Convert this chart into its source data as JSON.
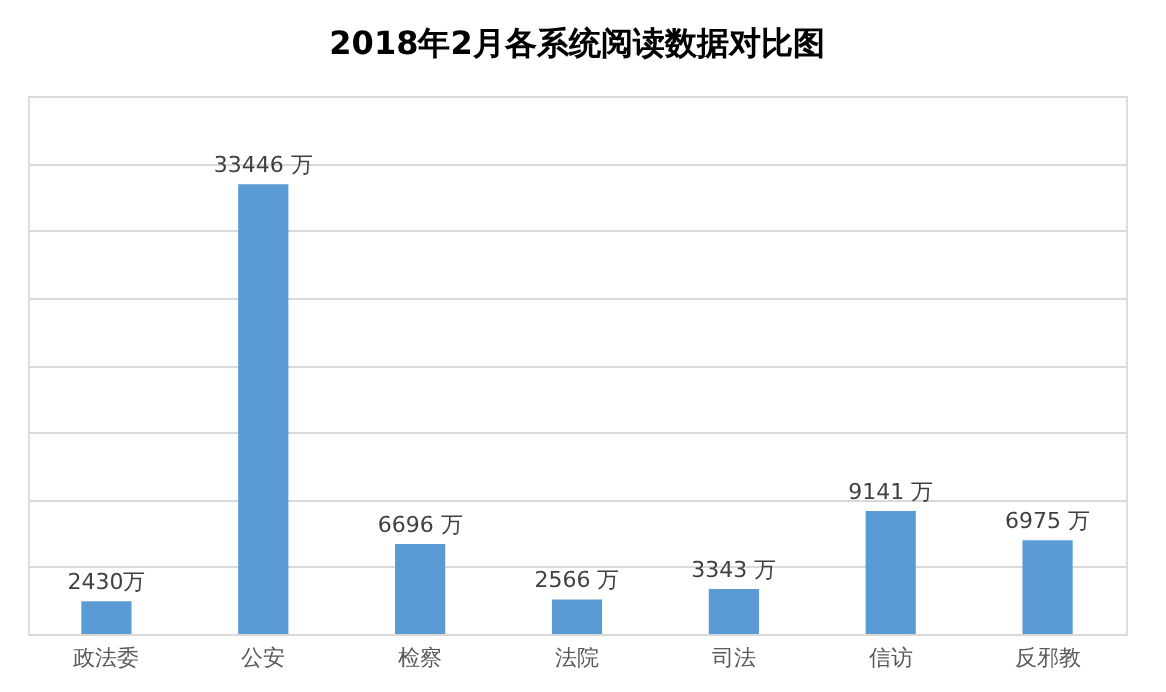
{
  "chart_data": {
    "type": "bar",
    "title": "2018年2月各系统阅读数据对比图",
    "categories": [
      "政法委",
      "公安",
      "检察",
      "法院",
      "司法",
      "信访",
      "反邪教"
    ],
    "values": [
      2430,
      33446,
      6696,
      2566,
      3343,
      9141,
      6975
    ],
    "value_labels": [
      "2430万",
      "33446 万",
      "6696 万",
      "2566 万",
      "3343 万",
      "9141 万",
      "6975 万"
    ],
    "color": "#5b9bd5",
    "ylim": [
      0,
      40000
    ],
    "yticks": [
      {
        "value": 0,
        "label": null
      },
      {
        "value": 5000,
        "label": null
      },
      {
        "value": 10000,
        "label": null
      },
      {
        "value": 15000,
        "label": null
      },
      {
        "value": 20000,
        "label": null
      },
      {
        "value": 25000,
        "label": null
      },
      {
        "value": 30000,
        "label": null
      },
      {
        "value": 35000,
        "label": null
      },
      {
        "value": 40000,
        "label": null
      }
    ],
    "grid": "y",
    "tick_labels": "x"
  }
}
